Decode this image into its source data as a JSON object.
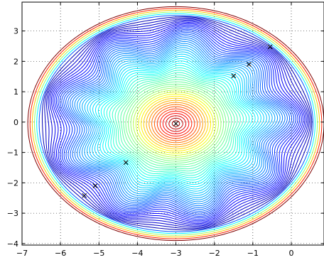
{
  "chart_data": {
    "type": "contour",
    "title": "",
    "xlabel": "",
    "ylabel": "",
    "xlim": [
      -7,
      0.85
    ],
    "ylim": [
      -4.05,
      3.95
    ],
    "xticks": [
      -7,
      -6,
      -5,
      -4,
      -3,
      -2,
      -1,
      0
    ],
    "yticks": [
      -4,
      -3,
      -2,
      -1,
      0,
      1,
      2,
      3
    ],
    "xtick_labels": [
      "−7",
      "−6",
      "−5",
      "−4",
      "−3",
      "−2",
      "−1",
      "0"
    ],
    "ytick_labels": [
      "−4",
      "−3",
      "−2",
      "−1",
      "0",
      "1",
      "2",
      "3"
    ],
    "grid": true,
    "colormap": "jet",
    "center": [
      -3.0,
      -0.05
    ],
    "boundary_radius": [
      3.85,
      3.85
    ],
    "levels": 60,
    "markers": [
      {
        "x": -3.0,
        "y": -0.05
      },
      {
        "x": -5.38,
        "y": -2.42
      },
      {
        "x": -5.1,
        "y": -2.1
      },
      {
        "x": -4.3,
        "y": -1.33
      },
      {
        "x": -1.5,
        "y": 1.52
      },
      {
        "x": -1.1,
        "y": 1.9
      },
      {
        "x": -0.55,
        "y": 2.48
      }
    ]
  }
}
